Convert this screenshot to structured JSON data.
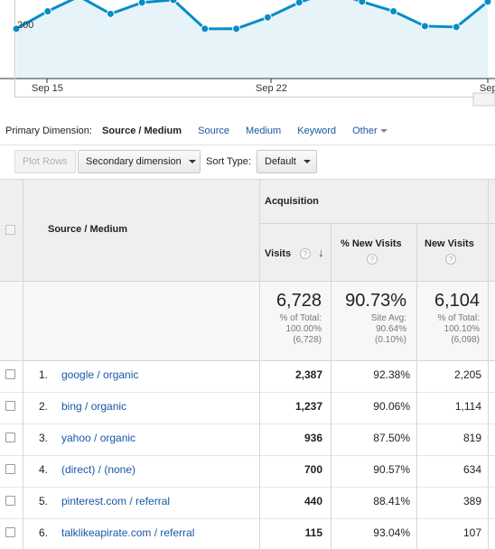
{
  "chart_data": {
    "type": "area",
    "y_tick_labels": [
      "200"
    ],
    "x_tick_labels": [
      "Sep 15",
      "Sep 22",
      "Sep"
    ],
    "series": [
      {
        "values": [
          195,
          215,
          232,
          212,
          225,
          228,
          195,
          195,
          208,
          225,
          238,
          226,
          215,
          198,
          197,
          226
        ]
      }
    ],
    "colors": {
      "line": "#058dc7",
      "fill": "#e6f4fa"
    }
  },
  "primary_dimension": {
    "label": "Primary Dimension:",
    "selected": "Source / Medium",
    "options": [
      "Source",
      "Medium",
      "Keyword",
      "Other"
    ]
  },
  "toolbar": {
    "plot_rows": "Plot Rows",
    "secondary_dimension": "Secondary dimension",
    "sort_type_label": "Sort Type:",
    "sort_type_value": "Default"
  },
  "table": {
    "source_medium_header": "Source / Medium",
    "group_header": "Acquisition",
    "columns": [
      "Visits",
      "% New Visits",
      "New Visits"
    ],
    "totals": [
      {
        "value": "6,728",
        "lines": [
          "% of Total:",
          "100.00%",
          "(6,728)"
        ]
      },
      {
        "value": "90.73%",
        "lines": [
          "Site Avg:",
          "90.64%",
          "(0.10%)"
        ]
      },
      {
        "value": "6,104",
        "lines": [
          "% of Total:",
          "100.10%",
          "(6,098)"
        ]
      }
    ],
    "rows": [
      {
        "num": "1.",
        "source": "google / organic",
        "visits": "2,387",
        "pct_new": "92.38%",
        "new_visits": "2,205"
      },
      {
        "num": "2.",
        "source": "bing / organic",
        "visits": "1,237",
        "pct_new": "90.06%",
        "new_visits": "1,114"
      },
      {
        "num": "3.",
        "source": "yahoo / organic",
        "visits": "936",
        "pct_new": "87.50%",
        "new_visits": "819"
      },
      {
        "num": "4.",
        "source": "(direct) / (none)",
        "visits": "700",
        "pct_new": "90.57%",
        "new_visits": "634"
      },
      {
        "num": "5.",
        "source": "pinterest.com / referral",
        "visits": "440",
        "pct_new": "88.41%",
        "new_visits": "389"
      },
      {
        "num": "6.",
        "source": "talklikeapirate.com / referral",
        "visits": "115",
        "pct_new": "93.04%",
        "new_visits": "107"
      }
    ]
  }
}
